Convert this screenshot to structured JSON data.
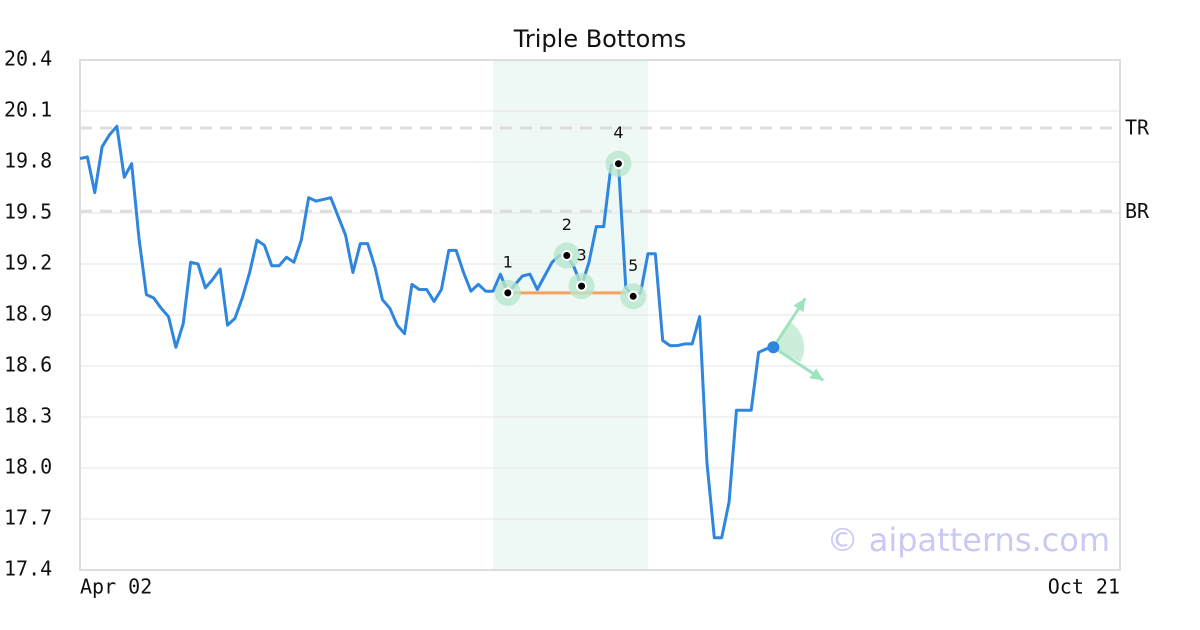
{
  "chart_data": {
    "type": "line",
    "title": "Triple Bottoms",
    "values": [
      19.82,
      19.83,
      19.62,
      19.89,
      19.96,
      20.01,
      19.71,
      19.79,
      19.35,
      19.02,
      19.0,
      18.94,
      18.89,
      18.71,
      18.85,
      19.21,
      19.2,
      19.06,
      19.11,
      19.17,
      18.84,
      18.88,
      19.0,
      19.15,
      19.34,
      19.31,
      19.19,
      19.19,
      19.24,
      19.21,
      19.34,
      19.59,
      19.57,
      19.58,
      19.59,
      19.48,
      19.37,
      19.15,
      19.32,
      19.32,
      19.18,
      18.99,
      18.94,
      18.84,
      18.79,
      19.08,
      19.05,
      19.05,
      18.98,
      19.05,
      19.28,
      19.28,
      19.15,
      19.04,
      19.08,
      19.04,
      19.04,
      19.14,
      19.03,
      19.08,
      19.13,
      19.14,
      19.05,
      19.13,
      19.21,
      19.25,
      19.25,
      19.18,
      19.07,
      19.21,
      19.42,
      19.42,
      19.78,
      19.79,
      19.06,
      19.01,
      19.03,
      19.26,
      19.26,
      18.75,
      18.72,
      18.72,
      18.73,
      18.73,
      18.89,
      18.03,
      17.59,
      17.59,
      17.8,
      18.34,
      18.34,
      18.34,
      18.68,
      18.7,
      18.71
    ],
    "color": "#2e86de",
    "xlim": [
      0,
      141
    ],
    "xticks": [
      {
        "value": 0,
        "label": "Apr 02"
      },
      {
        "value": 141,
        "label": "Oct 21"
      }
    ],
    "ylim": [
      17.4,
      20.4
    ],
    "yticks": [
      17.4,
      17.7,
      {
        "value": 18,
        "label": "18.0"
      },
      18.3,
      18.6,
      18.9,
      19.2,
      19.5,
      19.8,
      20.1,
      20.4
    ],
    "grid": true,
    "pattern_range": [
      56,
      77
    ],
    "levels": [
      {
        "label": "TR",
        "value": 20.0
      },
      {
        "label": "BR",
        "value": 19.51
      }
    ],
    "points": [
      {
        "label": "1",
        "x": 58,
        "y": 19.03
      },
      {
        "label": "2",
        "x": 66,
        "y": 19.25
      },
      {
        "label": "3",
        "x": 68,
        "y": 19.07
      },
      {
        "label": "4",
        "x": 73,
        "y": 19.79
      },
      {
        "label": "5",
        "x": 75,
        "y": 19.01
      }
    ],
    "support": {
      "x": [
        58,
        74
      ],
      "y": 19.03
    },
    "watermark": "© aipatterns.com"
  }
}
